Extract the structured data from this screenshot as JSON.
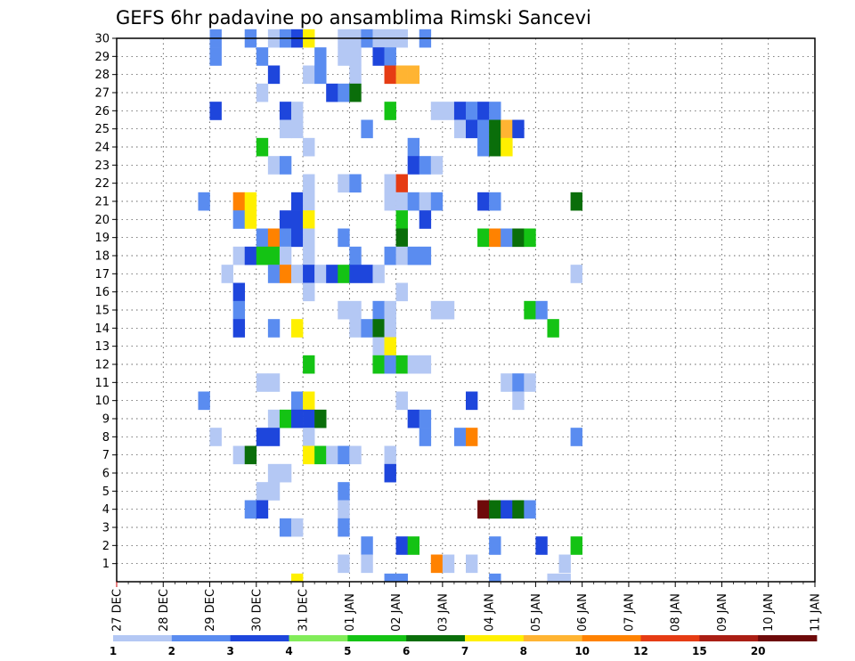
{
  "chart_data": {
    "type": "heatmap",
    "title": "GEFS 6hr padavine po ansamblima Rimski Sancevi",
    "xlabel": "",
    "ylabel": "",
    "y_ticks": [
      "1",
      "2",
      "3",
      "4",
      "5",
      "6",
      "7",
      "8",
      "9",
      "10",
      "11",
      "12",
      "13",
      "14",
      "15",
      "16",
      "17",
      "18",
      "19",
      "20",
      "21",
      "22",
      "23",
      "24",
      "25",
      "26",
      "27",
      "28",
      "29",
      "30"
    ],
    "x_ticks": [
      "27 DEC",
      "28 DEC",
      "29 DEC",
      "30 DEC",
      "31 DEC",
      "01 JAN",
      "02 JAN",
      "03 JAN",
      "04 JAN",
      "05 JAN",
      "06 JAN",
      "07 JAN",
      "08 JAN",
      "09 JAN",
      "10 JAN",
      "11 JAN"
    ],
    "x_unit": "6-hour step from 27 DEC 00Z",
    "n_steps": 60,
    "y_range": [
      0,
      30
    ],
    "grid": true,
    "colorbar": {
      "labels": [
        "1",
        "2",
        "3",
        "4",
        "5",
        "6",
        "7",
        "8",
        "10",
        "12",
        "15",
        "20"
      ],
      "colors": [
        "#b4c8f4",
        "#5a8cf0",
        "#1e46dc",
        "#82ec5a",
        "#14c314",
        "#0a6e0a",
        "#fff000",
        "#ffb432",
        "#ff8200",
        "#e63c14",
        "#aa1e14",
        "#6e0a0a"
      ]
    },
    "cells": [
      [
        8,
        30,
        2
      ],
      [
        11,
        30,
        2
      ],
      [
        13,
        30,
        1
      ],
      [
        14,
        30,
        2
      ],
      [
        15,
        30,
        3
      ],
      [
        16,
        30,
        7
      ],
      [
        19,
        30,
        1
      ],
      [
        20,
        30,
        1
      ],
      [
        21,
        30,
        2
      ],
      [
        22,
        30,
        1
      ],
      [
        23,
        30,
        1
      ],
      [
        24,
        30,
        1
      ],
      [
        26,
        30,
        2
      ],
      [
        8,
        29,
        2
      ],
      [
        12,
        29,
        2
      ],
      [
        17,
        29,
        2
      ],
      [
        19,
        29,
        1
      ],
      [
        20,
        29,
        1
      ],
      [
        22,
        29,
        3
      ],
      [
        23,
        29,
        2
      ],
      [
        13,
        28,
        3
      ],
      [
        16,
        28,
        1
      ],
      [
        17,
        28,
        2
      ],
      [
        20,
        28,
        1
      ],
      [
        23,
        28,
        10
      ],
      [
        24,
        28,
        8
      ],
      [
        25,
        28,
        8
      ],
      [
        12,
        27,
        1
      ],
      [
        18,
        27,
        3
      ],
      [
        19,
        27,
        2
      ],
      [
        20,
        27,
        6
      ],
      [
        8,
        26,
        3
      ],
      [
        14,
        26,
        3
      ],
      [
        15,
        26,
        1
      ],
      [
        23,
        26,
        5
      ],
      [
        27,
        26,
        1
      ],
      [
        28,
        26,
        1
      ],
      [
        29,
        26,
        3
      ],
      [
        30,
        26,
        2
      ],
      [
        31,
        26,
        3
      ],
      [
        32,
        26,
        2
      ],
      [
        14,
        25,
        1
      ],
      [
        15,
        25,
        1
      ],
      [
        21,
        25,
        2
      ],
      [
        29,
        25,
        1
      ],
      [
        30,
        25,
        3
      ],
      [
        31,
        25,
        2
      ],
      [
        32,
        25,
        6
      ],
      [
        33,
        25,
        8
      ],
      [
        34,
        25,
        3
      ],
      [
        12,
        24,
        5
      ],
      [
        16,
        24,
        1
      ],
      [
        25,
        24,
        2
      ],
      [
        31,
        24,
        2
      ],
      [
        32,
        24,
        6
      ],
      [
        33,
        24,
        7
      ],
      [
        13,
        23,
        1
      ],
      [
        14,
        23,
        2
      ],
      [
        25,
        23,
        3
      ],
      [
        26,
        23,
        2
      ],
      [
        27,
        23,
        1
      ],
      [
        16,
        22,
        1
      ],
      [
        19,
        22,
        1
      ],
      [
        20,
        22,
        2
      ],
      [
        23,
        22,
        1
      ],
      [
        24,
        22,
        10
      ],
      [
        7,
        21,
        2
      ],
      [
        10,
        21,
        9
      ],
      [
        11,
        21,
        7
      ],
      [
        15,
        21,
        3
      ],
      [
        16,
        21,
        1
      ],
      [
        23,
        21,
        1
      ],
      [
        24,
        21,
        1
      ],
      [
        25,
        21,
        2
      ],
      [
        26,
        21,
        1
      ],
      [
        27,
        21,
        2
      ],
      [
        31,
        21,
        3
      ],
      [
        32,
        21,
        2
      ],
      [
        39,
        21,
        6
      ],
      [
        10,
        20,
        2
      ],
      [
        11,
        20,
        7
      ],
      [
        14,
        20,
        3
      ],
      [
        15,
        20,
        3
      ],
      [
        16,
        20,
        7
      ],
      [
        24,
        20,
        5
      ],
      [
        26,
        20,
        3
      ],
      [
        12,
        19,
        2
      ],
      [
        13,
        19,
        9
      ],
      [
        14,
        19,
        2
      ],
      [
        15,
        19,
        3
      ],
      [
        16,
        19,
        1
      ],
      [
        19,
        19,
        2
      ],
      [
        24,
        19,
        6
      ],
      [
        31,
        19,
        5
      ],
      [
        32,
        19,
        9
      ],
      [
        33,
        19,
        2
      ],
      [
        34,
        19,
        6
      ],
      [
        35,
        19,
        5
      ],
      [
        10,
        18,
        1
      ],
      [
        11,
        18,
        3
      ],
      [
        12,
        18,
        5
      ],
      [
        13,
        18,
        5
      ],
      [
        14,
        18,
        1
      ],
      [
        16,
        18,
        1
      ],
      [
        20,
        18,
        2
      ],
      [
        23,
        18,
        2
      ],
      [
        24,
        18,
        1
      ],
      [
        25,
        18,
        2
      ],
      [
        26,
        18,
        2
      ],
      [
        9,
        17,
        1
      ],
      [
        13,
        17,
        2
      ],
      [
        14,
        17,
        9
      ],
      [
        15,
        17,
        1
      ],
      [
        16,
        17,
        3
      ],
      [
        17,
        17,
        1
      ],
      [
        18,
        17,
        3
      ],
      [
        19,
        17,
        5
      ],
      [
        20,
        17,
        3
      ],
      [
        21,
        17,
        3
      ],
      [
        22,
        17,
        1
      ],
      [
        39,
        17,
        1
      ],
      [
        10,
        16,
        3
      ],
      [
        16,
        16,
        1
      ],
      [
        24,
        16,
        1
      ],
      [
        10,
        15,
        2
      ],
      [
        19,
        15,
        1
      ],
      [
        20,
        15,
        1
      ],
      [
        22,
        15,
        2
      ],
      [
        23,
        15,
        1
      ],
      [
        27,
        15,
        1
      ],
      [
        28,
        15,
        1
      ],
      [
        35,
        15,
        5
      ],
      [
        36,
        15,
        2
      ],
      [
        10,
        14,
        3
      ],
      [
        13,
        14,
        2
      ],
      [
        15,
        14,
        7
      ],
      [
        20,
        14,
        1
      ],
      [
        21,
        14,
        2
      ],
      [
        22,
        14,
        6
      ],
      [
        23,
        14,
        1
      ],
      [
        37,
        14,
        5
      ],
      [
        22,
        13,
        1
      ],
      [
        23,
        13,
        7
      ],
      [
        16,
        12,
        5
      ],
      [
        22,
        12,
        5
      ],
      [
        23,
        12,
        2
      ],
      [
        24,
        12,
        5
      ],
      [
        25,
        12,
        1
      ],
      [
        26,
        12,
        1
      ],
      [
        12,
        11,
        1
      ],
      [
        13,
        11,
        1
      ],
      [
        33,
        11,
        1
      ],
      [
        34,
        11,
        2
      ],
      [
        35,
        11,
        1
      ],
      [
        7,
        10,
        2
      ],
      [
        15,
        10,
        2
      ],
      [
        16,
        10,
        7
      ],
      [
        24,
        10,
        1
      ],
      [
        30,
        10,
        3
      ],
      [
        34,
        10,
        1
      ],
      [
        13,
        9,
        1
      ],
      [
        14,
        9,
        5
      ],
      [
        15,
        9,
        3
      ],
      [
        16,
        9,
        3
      ],
      [
        17,
        9,
        6
      ],
      [
        25,
        9,
        3
      ],
      [
        26,
        9,
        2
      ],
      [
        8,
        8,
        1
      ],
      [
        12,
        8,
        3
      ],
      [
        13,
        8,
        3
      ],
      [
        16,
        8,
        1
      ],
      [
        26,
        8,
        2
      ],
      [
        29,
        8,
        2
      ],
      [
        30,
        8,
        9
      ],
      [
        39,
        8,
        2
      ],
      [
        10,
        7,
        1
      ],
      [
        11,
        7,
        6
      ],
      [
        16,
        7,
        7
      ],
      [
        17,
        7,
        5
      ],
      [
        18,
        7,
        1
      ],
      [
        19,
        7,
        2
      ],
      [
        20,
        7,
        1
      ],
      [
        23,
        7,
        1
      ],
      [
        13,
        6,
        1
      ],
      [
        14,
        6,
        1
      ],
      [
        23,
        6,
        3
      ],
      [
        12,
        5,
        1
      ],
      [
        13,
        5,
        1
      ],
      [
        19,
        5,
        2
      ],
      [
        11,
        4,
        2
      ],
      [
        12,
        4,
        3
      ],
      [
        19,
        4,
        1
      ],
      [
        31,
        4,
        12
      ],
      [
        32,
        4,
        6
      ],
      [
        33,
        4,
        3
      ],
      [
        34,
        4,
        6
      ],
      [
        35,
        4,
        2
      ],
      [
        14,
        3,
        2
      ],
      [
        15,
        3,
        1
      ],
      [
        19,
        3,
        2
      ],
      [
        21,
        2,
        2
      ],
      [
        24,
        2,
        3
      ],
      [
        25,
        2,
        5
      ],
      [
        32,
        2,
        2
      ],
      [
        36,
        2,
        3
      ],
      [
        39,
        2,
        5
      ],
      [
        19,
        1,
        1
      ],
      [
        21,
        1,
        1
      ],
      [
        27,
        1,
        9
      ],
      [
        28,
        1,
        1
      ],
      [
        30,
        1,
        1
      ],
      [
        38,
        1,
        1
      ],
      [
        15,
        0,
        7
      ],
      [
        23,
        0,
        2
      ],
      [
        24,
        0,
        2
      ],
      [
        32,
        0,
        2
      ],
      [
        37,
        0,
        1
      ],
      [
        38,
        0,
        1
      ]
    ]
  }
}
